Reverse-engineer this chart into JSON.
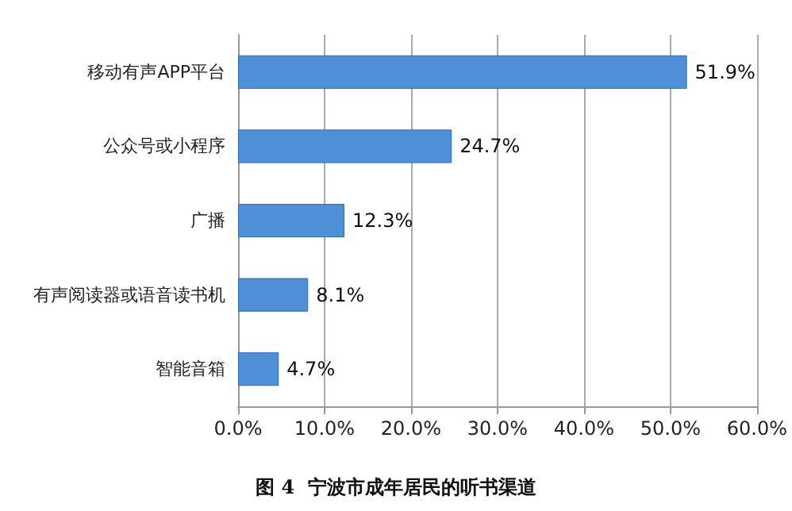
{
  "chart_data": {
    "type": "bar",
    "orientation": "horizontal",
    "title": "图 4  宁波市成年居民的听书渠道",
    "categories": [
      "移动有声APP平台",
      "公众号或小程序",
      "广播",
      "有声阅读器或语音读书机",
      "智能音箱"
    ],
    "values": [
      51.9,
      24.7,
      12.3,
      8.1,
      4.7
    ],
    "value_labels": [
      "51.9%",
      "24.7%",
      "12.3%",
      "8.1%",
      "4.7%"
    ],
    "color": "#4f8fd8",
    "xlim": [
      0,
      60
    ],
    "xticks": [
      {
        "value": 0,
        "label": "0.0%"
      },
      {
        "value": 10,
        "label": "10.0%"
      },
      {
        "value": 20,
        "label": "20.0%"
      },
      {
        "value": 30,
        "label": "30.0%"
      },
      {
        "value": 40,
        "label": "40.0%"
      },
      {
        "value": 50,
        "label": "50.0%"
      },
      {
        "value": 60,
        "label": "60.0%"
      }
    ],
    "grid": "x"
  }
}
